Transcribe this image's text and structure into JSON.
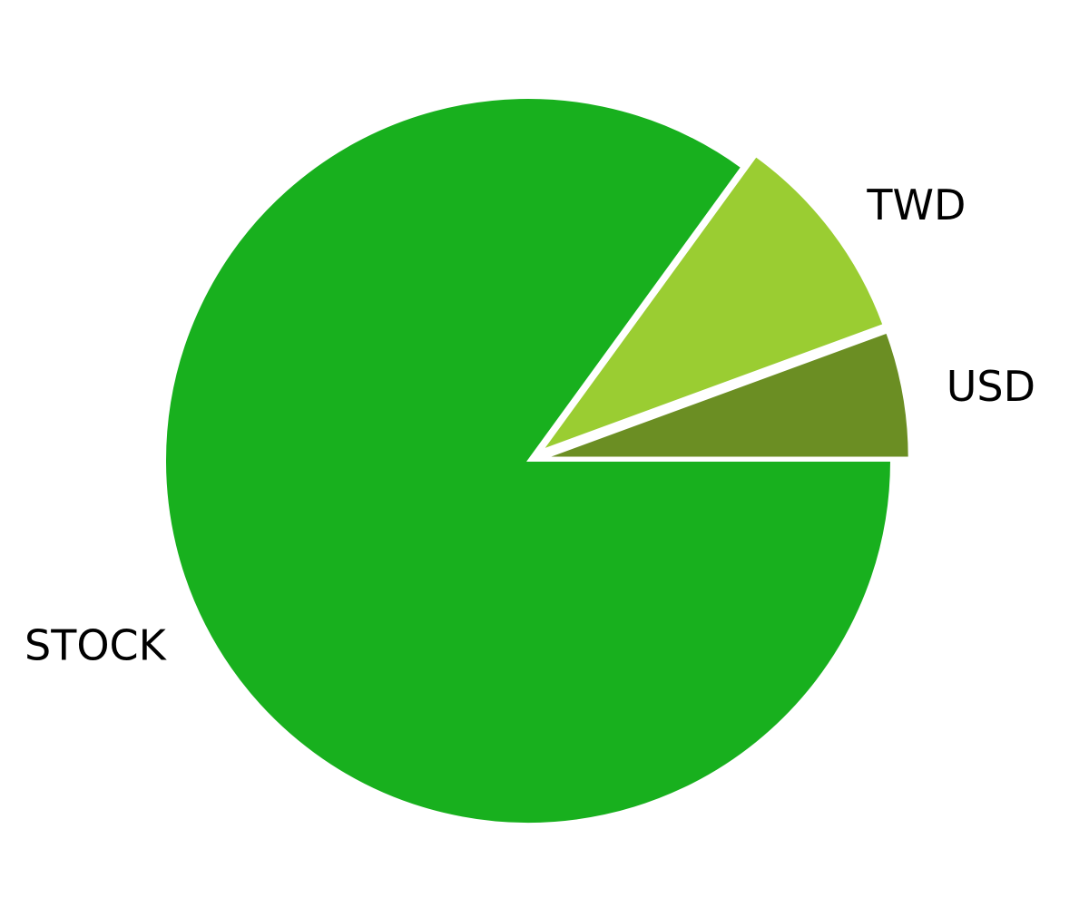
{
  "chart_data": {
    "type": "pie",
    "title": "",
    "slices": [
      {
        "label": "USD",
        "value": 5.6,
        "color": "#6b8e23"
      },
      {
        "label": "TWD",
        "value": 9.4,
        "color": "#9acd32"
      },
      {
        "label": "STOCK",
        "value": 85.0,
        "color": "#18b01e"
      }
    ],
    "start_angle_deg": 0,
    "direction": "counterclockwise",
    "explode": [
      0.05,
      0.05,
      0.0
    ],
    "legend": "none"
  }
}
